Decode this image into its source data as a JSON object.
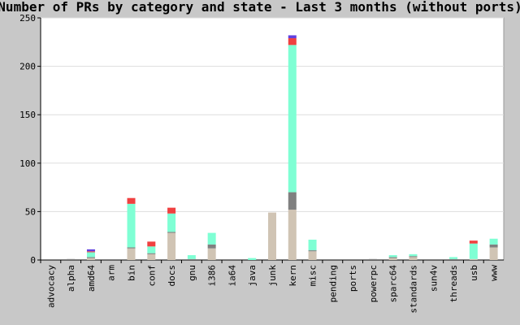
{
  "chart_data": {
    "type": "stacked_bar",
    "title": "Number of PRs by category and state - Last 3 months (without ports)",
    "categories": [
      "advocacy",
      "alpha",
      "amd64",
      "arm",
      "bin",
      "conf",
      "docs",
      "gnu",
      "i386",
      "ia64",
      "java",
      "junk",
      "kern",
      "misc",
      "pending",
      "ports",
      "powerpc",
      "sparc64",
      "standards",
      "sun4v",
      "threads",
      "usb",
      "www"
    ],
    "series": [
      {
        "color": "#d0c4b4",
        "values": [
          0,
          0,
          2,
          0,
          12,
          6,
          28,
          0,
          12,
          0,
          0,
          49,
          52,
          9,
          0,
          0,
          0,
          2,
          3,
          0,
          0,
          1,
          13
        ]
      },
      {
        "color": "#808080",
        "values": [
          0,
          1,
          1,
          0,
          1,
          1,
          1,
          1,
          4,
          0,
          0,
          0,
          18,
          1,
          0,
          0,
          1,
          1,
          1,
          0,
          1,
          0,
          3
        ]
      },
      {
        "color": "#7fffd4",
        "values": [
          0,
          0,
          5,
          0,
          45,
          7,
          19,
          4,
          12,
          0,
          2,
          0,
          152,
          11,
          0,
          0,
          0,
          2,
          2,
          0,
          2,
          16,
          6
        ]
      },
      {
        "color": "#f04040",
        "values": [
          0,
          0,
          1,
          0,
          6,
          5,
          6,
          0,
          0,
          0,
          0,
          0,
          7,
          0,
          0,
          0,
          0,
          0,
          0,
          0,
          0,
          3,
          0
        ]
      },
      {
        "color": "#6040e0",
        "values": [
          0,
          0,
          2,
          0,
          0,
          0,
          0,
          0,
          0,
          0,
          0,
          0,
          3,
          0,
          0,
          0,
          0,
          0,
          0,
          0,
          0,
          0,
          0
        ]
      }
    ],
    "ylim": [
      0,
      250
    ],
    "yticks": [
      0,
      50,
      100,
      150,
      200,
      250
    ],
    "grid": true
  }
}
